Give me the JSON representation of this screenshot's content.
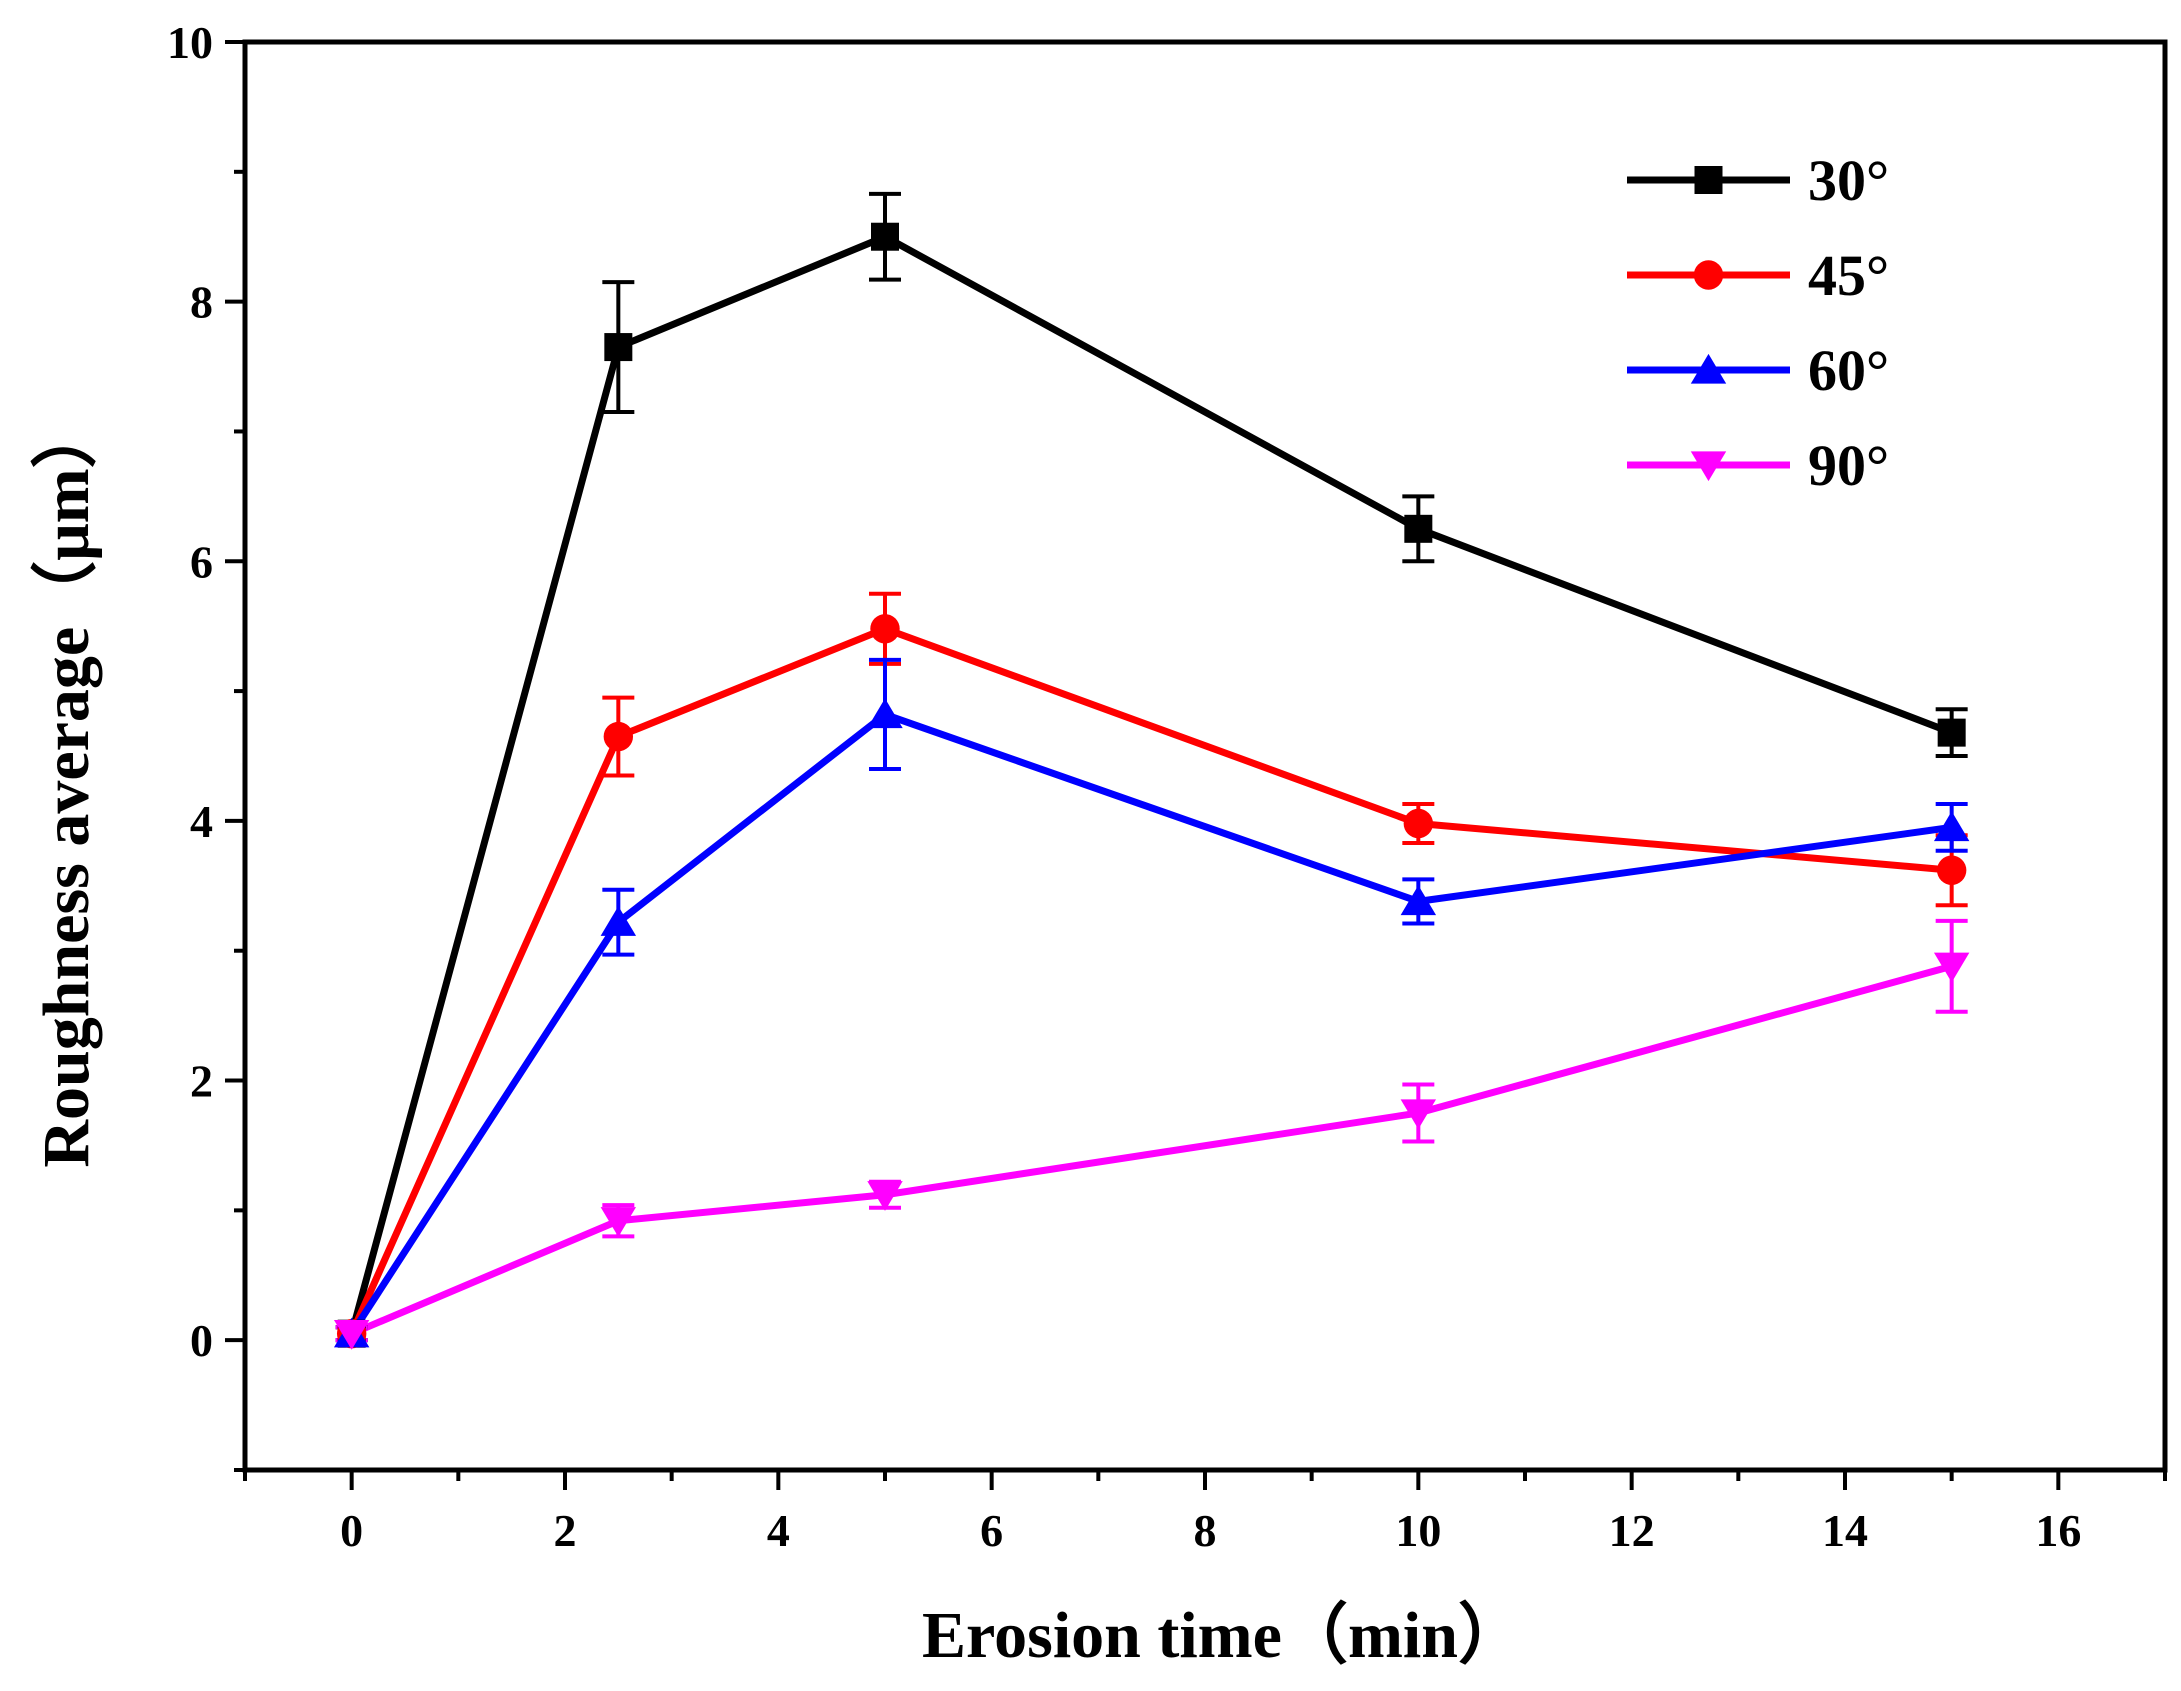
{
  "chart_data": {
    "type": "line",
    "title": "",
    "xlabel": "Erosion time（min）",
    "ylabel": "Roughness average（μm）",
    "xlim": [
      -1,
      17
    ],
    "ylim": [
      -1,
      10
    ],
    "xticks": [
      0,
      2,
      4,
      6,
      8,
      10,
      12,
      14,
      16
    ],
    "xtick_labels": [
      "0",
      "2",
      "4",
      "6",
      "8",
      "10",
      "12",
      "14",
      "16"
    ],
    "yticks": [
      0,
      2,
      4,
      6,
      8,
      10
    ],
    "ytick_labels": [
      "0",
      "2",
      "4",
      "6",
      "8",
      "10"
    ],
    "x": [
      0,
      2.5,
      5,
      10,
      15
    ],
    "legend_position": "top-right",
    "series": [
      {
        "name": "30°",
        "color": "#000000",
        "marker": "square",
        "values": [
          0.05,
          7.65,
          8.5,
          6.25,
          4.68
        ],
        "errors": [
          0.05,
          0.5,
          0.33,
          0.25,
          0.18
        ]
      },
      {
        "name": "45°",
        "color": "#ff0000",
        "marker": "circle",
        "values": [
          0.05,
          4.65,
          5.48,
          3.98,
          3.62
        ],
        "errors": [
          0.05,
          0.3,
          0.27,
          0.15,
          0.27
        ]
      },
      {
        "name": "60°",
        "color": "#0000ff",
        "marker": "triangle-up",
        "values": [
          0.05,
          3.22,
          4.82,
          3.38,
          3.95
        ],
        "errors": [
          0.05,
          0.25,
          0.42,
          0.17,
          0.18
        ]
      },
      {
        "name": "90°",
        "color": "#ff00ff",
        "marker": "triangle-down",
        "values": [
          0.05,
          0.92,
          1.12,
          1.75,
          2.88
        ],
        "errors": [
          0.05,
          0.12,
          0.1,
          0.22,
          0.35
        ]
      }
    ]
  }
}
